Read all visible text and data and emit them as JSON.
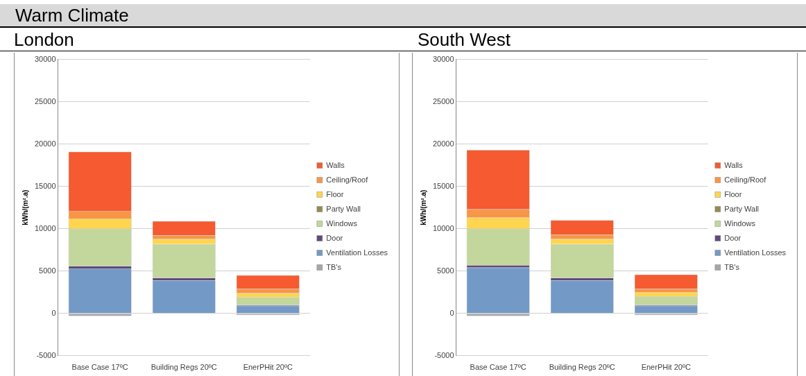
{
  "chart_data": [
    {
      "type": "bar",
      "subtitle": "Warm Climate",
      "title": "London",
      "ylabel": "kWh/(m².a)",
      "categories": [
        "Base Case 17ºC",
        "Building Regs 20ºC",
        "EnerPHit 20ºC"
      ],
      "stacked": true,
      "ylim": [
        -5000,
        30000
      ],
      "yticks": [
        -5000,
        0,
        5000,
        10000,
        15000,
        20000,
        25000,
        30000
      ],
      "grid": "y",
      "legend": "right",
      "series": [
        {
          "name": "TB's",
          "color": "#a6a6a6",
          "values": [
            -300,
            0,
            -200
          ]
        },
        {
          "name": "Ventilation Losses",
          "color": "#7399c6",
          "values": [
            5300,
            3900,
            900
          ]
        },
        {
          "name": "Door",
          "color": "#5f4a7b",
          "values": [
            300,
            300,
            100
          ]
        },
        {
          "name": "Windows",
          "color": "#c3d69b",
          "values": [
            4400,
            4000,
            900
          ]
        },
        {
          "name": "Party Wall",
          "color": "#948a54",
          "values": [
            0,
            0,
            0
          ]
        },
        {
          "name": "Floor",
          "color": "#ffd54f",
          "values": [
            1200,
            600,
            500
          ]
        },
        {
          "name": "Ceiling/Roof",
          "color": "#f79646",
          "values": [
            900,
            400,
            500
          ]
        },
        {
          "name": "Walls",
          "color": "#f55a30",
          "values": [
            7000,
            1700,
            1600
          ]
        }
      ]
    },
    {
      "type": "bar",
      "title": "South West",
      "ylabel": "kWh/(m².a)",
      "categories": [
        "Base Case 17ºC",
        "Building Regs 20ºC",
        "EnerPHit 20ºC"
      ],
      "stacked": true,
      "ylim": [
        -5000,
        30000
      ],
      "yticks": [
        -5000,
        0,
        5000,
        10000,
        15000,
        20000,
        25000,
        30000
      ],
      "grid": "y",
      "legend": "right",
      "series": [
        {
          "name": "TB's",
          "color": "#a6a6a6",
          "values": [
            -300,
            0,
            -200
          ]
        },
        {
          "name": "Ventilation Losses",
          "color": "#7399c6",
          "values": [
            5400,
            3900,
            900
          ]
        },
        {
          "name": "Door",
          "color": "#5f4a7b",
          "values": [
            300,
            300,
            100
          ]
        },
        {
          "name": "Windows",
          "color": "#c3d69b",
          "values": [
            4300,
            4000,
            1000
          ]
        },
        {
          "name": "Party Wall",
          "color": "#948a54",
          "values": [
            0,
            0,
            0
          ]
        },
        {
          "name": "Floor",
          "color": "#ffd54f",
          "values": [
            1300,
            600,
            500
          ]
        },
        {
          "name": "Ceiling/Roof",
          "color": "#f79646",
          "values": [
            1000,
            500,
            400
          ]
        },
        {
          "name": "Walls",
          "color": "#f55a30",
          "values": [
            7000,
            1700,
            1700
          ]
        }
      ]
    }
  ]
}
